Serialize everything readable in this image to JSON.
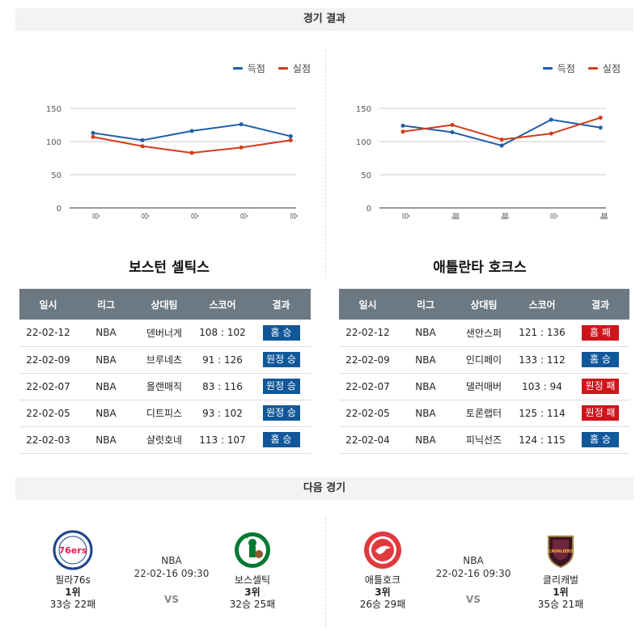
{
  "results_header": "경기 결과",
  "next_header": "다음 경기",
  "legend": {
    "scored": "득점",
    "conceded": "실점",
    "scored_color": "#1f5fa8",
    "conceded_color": "#d33a1a"
  },
  "colors": {
    "table_header": "#6c7983",
    "win": "#11579a",
    "loss": "#d0141b"
  },
  "chart_data": [
    {
      "type": "line",
      "categories": [
        "승",
        "승",
        "승",
        "승",
        "승"
      ],
      "series": [
        {
          "name": "득점",
          "values": [
            113,
            102,
            116,
            126,
            108
          ]
        },
        {
          "name": "실점",
          "values": [
            107,
            93,
            83,
            91,
            102
          ]
        }
      ],
      "yticks": [
        0,
        50,
        100,
        150
      ],
      "ylim": [
        0,
        150
      ],
      "grid": true,
      "legend_position": "top-right"
    },
    {
      "type": "line",
      "categories": [
        "승",
        "패",
        "패",
        "승",
        "패"
      ],
      "series": [
        {
          "name": "득점",
          "values": [
            124,
            114,
            94,
            133,
            121
          ]
        },
        {
          "name": "실점",
          "values": [
            115,
            125,
            103,
            112,
            136
          ]
        }
      ],
      "yticks": [
        0,
        50,
        100,
        150
      ],
      "ylim": [
        0,
        150
      ],
      "grid": true,
      "legend_position": "top-right"
    }
  ],
  "teams": [
    {
      "title": "보스턴 셀틱스",
      "columns": [
        "일시",
        "리그",
        "상대팀",
        "스코어",
        "결과"
      ],
      "rows": [
        {
          "date": "22-02-12",
          "league": "NBA",
          "opponent": "덴버너게",
          "score": "108 : 102",
          "result": "홈 승",
          "win": true
        },
        {
          "date": "22-02-09",
          "league": "NBA",
          "opponent": "브루네츠",
          "score": "91 : 126",
          "result": "원정 승",
          "win": true
        },
        {
          "date": "22-02-07",
          "league": "NBA",
          "opponent": "올랜매직",
          "score": "83 : 116",
          "result": "원정 승",
          "win": true
        },
        {
          "date": "22-02-05",
          "league": "NBA",
          "opponent": "디트피스",
          "score": "93 : 102",
          "result": "원정 승",
          "win": true
        },
        {
          "date": "22-02-03",
          "league": "NBA",
          "opponent": "샬럿호네",
          "score": "113 : 107",
          "result": "홈 승",
          "win": true
        }
      ]
    },
    {
      "title": "애틀란타 호크스",
      "columns": [
        "일시",
        "리그",
        "상대팀",
        "스코어",
        "결과"
      ],
      "rows": [
        {
          "date": "22-02-12",
          "league": "NBA",
          "opponent": "샌안스퍼",
          "score": "121 : 136",
          "result": "홈 패",
          "win": false
        },
        {
          "date": "22-02-09",
          "league": "NBA",
          "opponent": "인디페이",
          "score": "133 : 112",
          "result": "홈 승",
          "win": true
        },
        {
          "date": "22-02-07",
          "league": "NBA",
          "opponent": "댈러매버",
          "score": "103 : 94",
          "result": "원정 패",
          "win": false
        },
        {
          "date": "22-02-05",
          "league": "NBA",
          "opponent": "토론랩터",
          "score": "125 : 114",
          "result": "원정 패",
          "win": false
        },
        {
          "date": "22-02-04",
          "league": "NBA",
          "opponent": "피닉선즈",
          "score": "124 : 115",
          "result": "홈 승",
          "win": true
        }
      ]
    }
  ],
  "next_games": [
    {
      "league": "NBA",
      "datetime": "22-02-16 09:30",
      "vs": "VS",
      "home": {
        "name": "필라76s",
        "rank": "1위",
        "record": "33승 22패",
        "logo": "76ers-logo",
        "logo_color": "#1d428a",
        "logo_text": "76ers"
      },
      "away": {
        "name": "보스셀틱",
        "rank": "3위",
        "record": "32승 25패",
        "logo": "celtics-logo",
        "logo_color": "#007a33",
        "logo_text": ""
      }
    },
    {
      "league": "NBA",
      "datetime": "22-02-16 09:30",
      "vs": "VS",
      "home": {
        "name": "애틀호크",
        "rank": "3위",
        "record": "26승 29패",
        "logo": "hawks-logo",
        "logo_color": "#e03a3e",
        "logo_text": ""
      },
      "away": {
        "name": "클리캐벌",
        "rank": "1위",
        "record": "35승 21패",
        "logo": "cavaliers-logo",
        "logo_color": "#6f263d",
        "logo_text": "CAVALIERS"
      }
    }
  ]
}
